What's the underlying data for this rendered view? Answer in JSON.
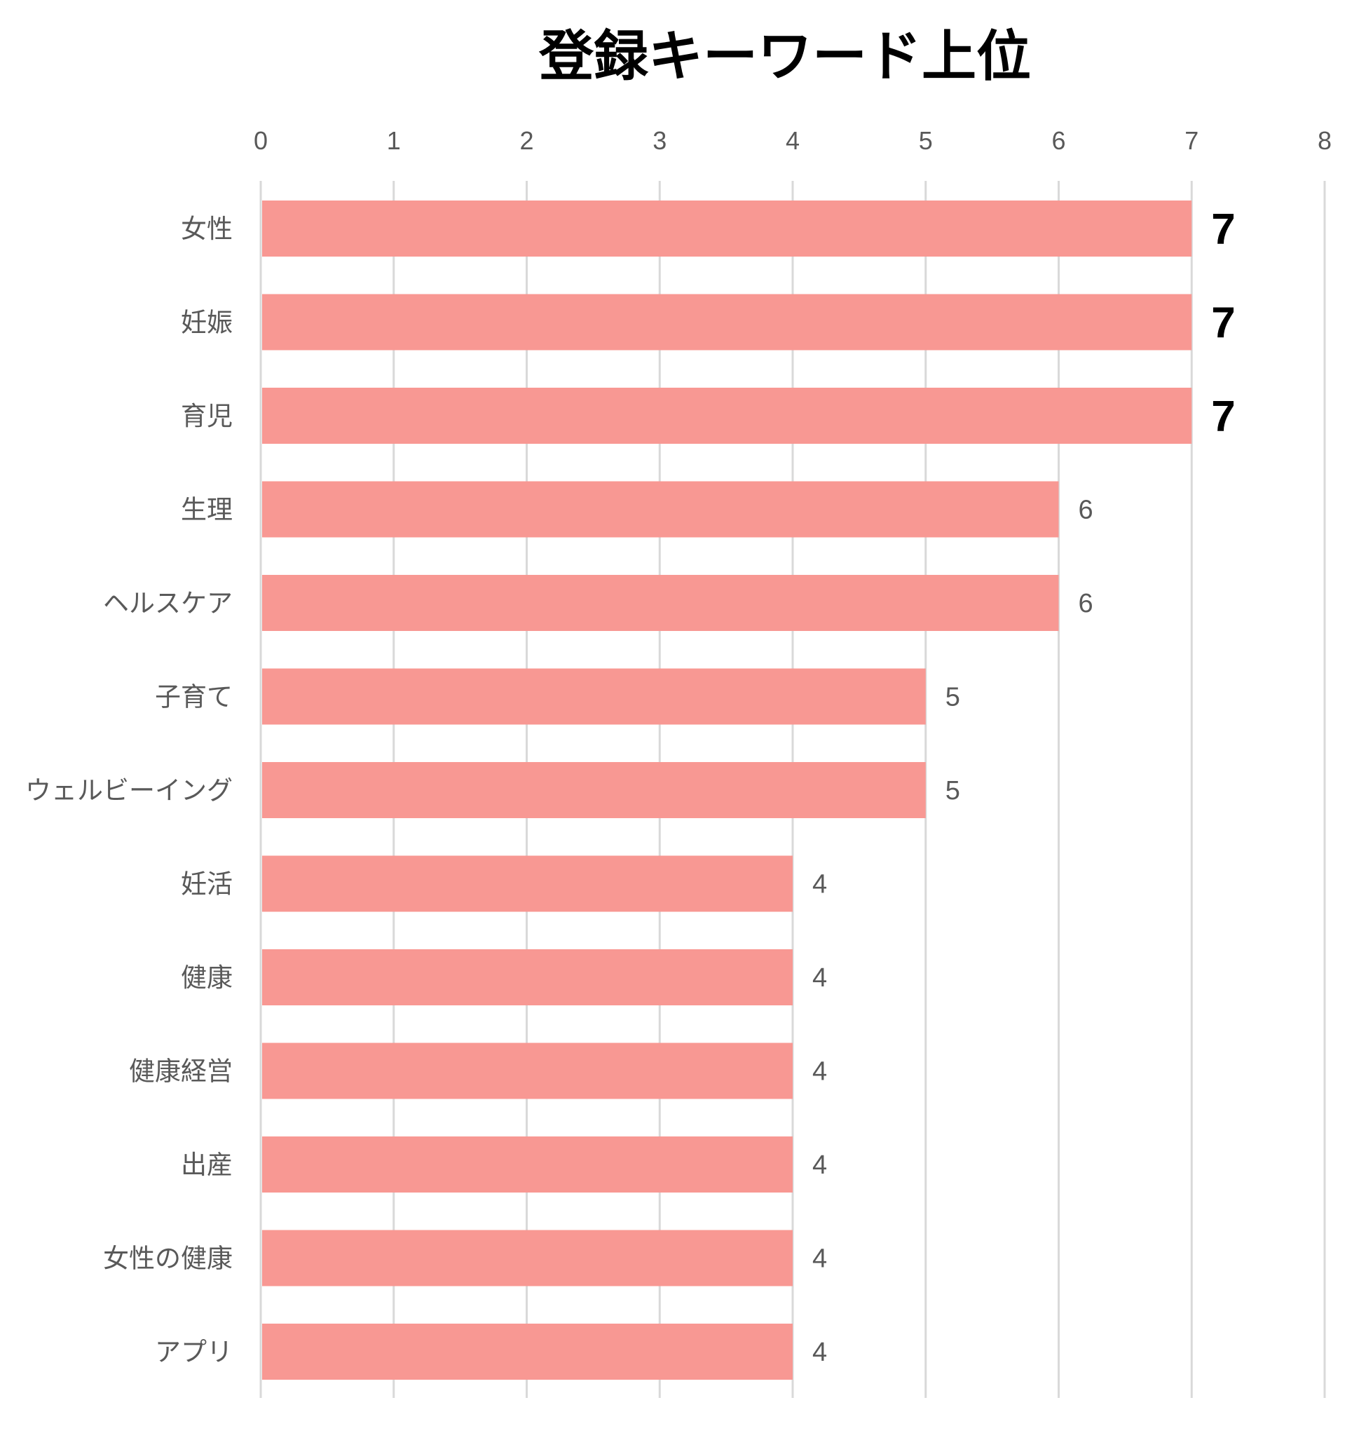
{
  "chart_data": {
    "type": "bar",
    "orientation": "horizontal",
    "title": "登録キーワード上位",
    "categories": [
      "女性",
      "妊娠",
      "育児",
      "生理",
      "ヘルスケア",
      "子育て",
      "ウェルビーイング",
      "妊活",
      "健康",
      "健康経営",
      "出産",
      "女性の健康",
      "アプリ"
    ],
    "values": [
      7,
      7,
      7,
      6,
      6,
      5,
      5,
      4,
      4,
      4,
      4,
      4,
      4
    ],
    "xlim": [
      0,
      8
    ],
    "xticks": [
      0,
      1,
      2,
      3,
      4,
      5,
      6,
      7,
      8
    ],
    "xaxis_position": "top",
    "grid": true,
    "data_labels": true,
    "emphasized_value": 7,
    "colors": {
      "bar": "#f89893",
      "grid": "#d9d9d9",
      "text": "#595959",
      "emphasis": "#000000"
    }
  }
}
